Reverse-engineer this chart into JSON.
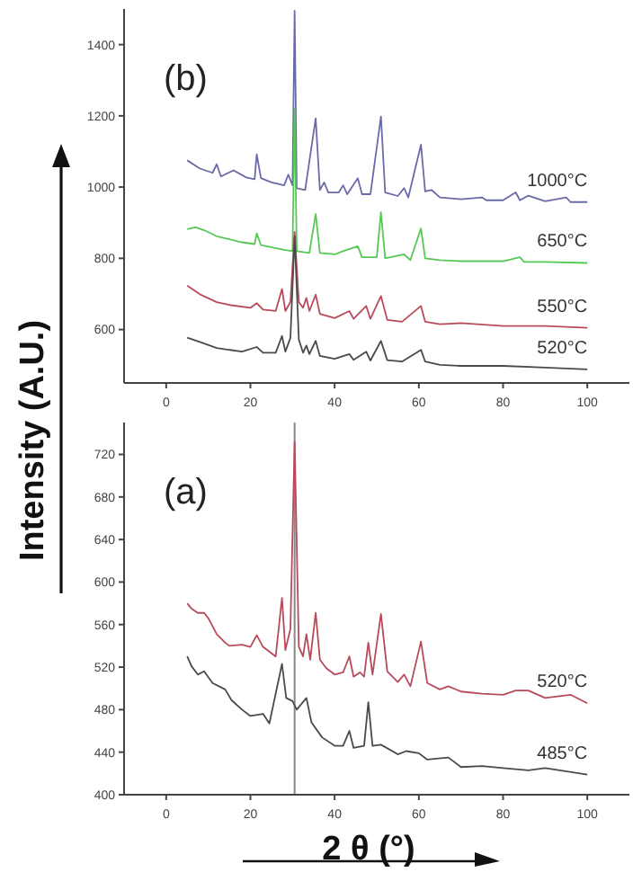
{
  "chart_data": [
    {
      "type": "line",
      "ylabel": "Intensity (A.U.)",
      "annotations": [
        "(b)"
      ],
      "xlim": [
        -10,
        110
      ],
      "xticks": [
        0,
        20,
        40,
        60,
        80,
        100
      ],
      "ylim": [
        450,
        1500
      ],
      "yticks": [
        600,
        800,
        1000,
        1200,
        1400
      ],
      "series": [
        {
          "name": "1000°C",
          "color": "#6a6aa8",
          "x": [
            5,
            8,
            11,
            12,
            13,
            16,
            19,
            21,
            21.5,
            22.5,
            25,
            28,
            29,
            30,
            30.5,
            31,
            33,
            35.5,
            36.5,
            37.5,
            38.5,
            41,
            42,
            43,
            45.5,
            46.5,
            48.5,
            51,
            52,
            55,
            56.5,
            57.5,
            60.5,
            61.5,
            63,
            65,
            70,
            75,
            76,
            80,
            83,
            84,
            86,
            90,
            95,
            96,
            100
          ],
          "values": [
            1075,
            1052,
            1040,
            1064,
            1030,
            1047,
            1027,
            1022,
            1092,
            1025,
            1013,
            1005,
            1035,
            1005,
            1495,
            997,
            992,
            1193,
            992,
            1013,
            985,
            985,
            1005,
            980,
            1025,
            980,
            980,
            1198,
            985,
            975,
            997,
            971,
            1119,
            988,
            992,
            971,
            966,
            971,
            963,
            963,
            985,
            963,
            976,
            960,
            971,
            958,
            958
          ]
        },
        {
          "name": "650°C",
          "color": "#55c855",
          "x": [
            5,
            7,
            9,
            12,
            18,
            21,
            21.5,
            22.5,
            28,
            30,
            30.5,
            31,
            34,
            35.5,
            36.5,
            40,
            42,
            45.5,
            46.5,
            50,
            51,
            52,
            56.5,
            58,
            60.5,
            61.5,
            65,
            70,
            80,
            84,
            85,
            90,
            100
          ],
          "values": [
            882,
            887,
            879,
            862,
            845,
            840,
            870,
            837,
            824,
            820,
            1220,
            820,
            815,
            924,
            815,
            811,
            820,
            834,
            803,
            803,
            929,
            800,
            811,
            795,
            884,
            800,
            795,
            792,
            792,
            803,
            790,
            790,
            787
          ]
        },
        {
          "name": "550°C",
          "color": "#b84a5a",
          "x": [
            5,
            8,
            12,
            15,
            20,
            21.5,
            23,
            26,
            27.5,
            28.3,
            29.5,
            30.5,
            31.5,
            32.5,
            33.3,
            34,
            35.5,
            36.5,
            40,
            43.5,
            44.5,
            47.5,
            48.5,
            51,
            52.5,
            56,
            60.5,
            61.5,
            65,
            70,
            80,
            90,
            100
          ],
          "values": [
            723,
            699,
            677,
            669,
            661,
            674,
            656,
            652,
            714,
            652,
            677,
            874,
            677,
            661,
            689,
            652,
            698,
            644,
            632,
            652,
            630,
            666,
            630,
            694,
            627,
            622,
            666,
            622,
            615,
            618,
            610,
            610,
            605
          ]
        },
        {
          "name": "520°C",
          "color": "#4a4a4a",
          "x": [
            5,
            8,
            12,
            18,
            21.5,
            23,
            26,
            27.5,
            28.3,
            29.5,
            30.5,
            31.5,
            32.5,
            33.3,
            34,
            35.5,
            36.5,
            40,
            43.5,
            44.5,
            47.5,
            48.5,
            51,
            52.5,
            56,
            60.5,
            61.5,
            65,
            70,
            80,
            90,
            100
          ],
          "values": [
            577,
            565,
            548,
            538,
            551,
            535,
            535,
            582,
            538,
            577,
            862,
            572,
            535,
            555,
            531,
            568,
            526,
            518,
            531,
            515,
            538,
            513,
            568,
            514,
            510,
            543,
            510,
            501,
            498,
            498,
            493,
            488
          ]
        }
      ]
    },
    {
      "type": "line",
      "xlabel": "2 θ (°)",
      "annotations": [
        "(a)"
      ],
      "xlim": [
        -10,
        110
      ],
      "xticks": [
        0,
        20,
        40,
        60,
        80,
        100
      ],
      "ylim": [
        400,
        750
      ],
      "yticks": [
        400,
        440,
        480,
        520,
        560,
        600,
        640,
        680,
        720
      ],
      "ref_lines": [
        {
          "axis": "x",
          "value": 30.5,
          "color": "#888888"
        }
      ],
      "series": [
        {
          "name": "520°C",
          "color": "#b84a5a",
          "x": [
            5,
            6,
            7.5,
            9,
            10,
            12,
            14,
            15,
            18,
            20,
            21.5,
            23,
            26,
            27.5,
            28.3,
            29.5,
            30.5,
            31.5,
            32.5,
            33.3,
            34.2,
            35.5,
            36.5,
            38,
            40,
            42,
            43.5,
            44.5,
            46,
            47,
            48,
            49,
            51,
            52.5,
            55,
            56.5,
            58,
            60.5,
            62,
            65,
            67,
            70,
            75,
            80,
            83,
            86,
            90,
            96,
            100
          ],
          "values": [
            580,
            575,
            571,
            571,
            566,
            551,
            543,
            540,
            541,
            539,
            550,
            539,
            530,
            585,
            536,
            556,
            732,
            539,
            530,
            551,
            527,
            571,
            527,
            519,
            513,
            515,
            530,
            511,
            515,
            511,
            543,
            513,
            570,
            516,
            506,
            513,
            502,
            544,
            505,
            499,
            502,
            497,
            495,
            494,
            498,
            498,
            491,
            494,
            486
          ]
        },
        {
          "name": "485°C",
          "color": "#4a4a4a",
          "x": [
            5,
            6,
            7.5,
            9,
            11,
            14,
            15.5,
            18,
            20,
            23,
            24.5,
            27.5,
            28.5,
            30,
            31,
            33.3,
            34.5,
            37,
            40,
            42,
            43.5,
            44.5,
            47,
            48,
            49,
            51,
            55,
            57,
            60,
            62,
            67,
            70,
            75,
            80,
            86,
            90,
            100
          ],
          "values": [
            530,
            521,
            513,
            516,
            505,
            499,
            489,
            480,
            474,
            476,
            467,
            523,
            491,
            488,
            480,
            491,
            468,
            454,
            446,
            446,
            460,
            444,
            446,
            487,
            446,
            447,
            438,
            441,
            439,
            433,
            435,
            426,
            427,
            425,
            423,
            425,
            419
          ]
        }
      ]
    }
  ]
}
